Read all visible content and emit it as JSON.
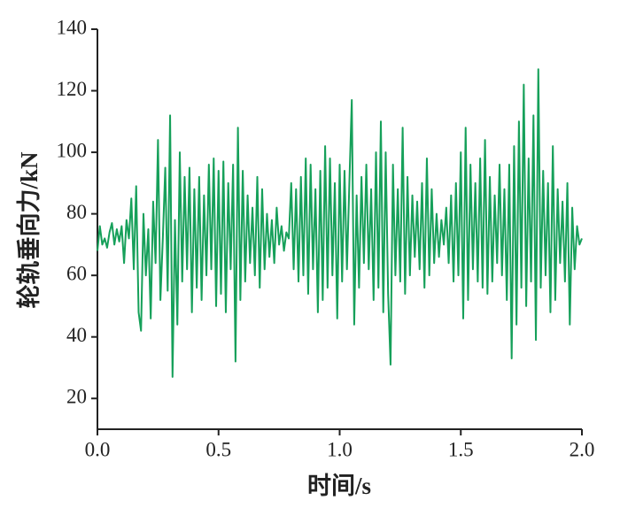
{
  "chart_data": {
    "type": "line",
    "x_label": "时间/s",
    "y_label": "轮轨垂向力/kN",
    "xlim": [
      0,
      2
    ],
    "xticks": [
      {
        "value": 0,
        "label": "0.0"
      },
      0.5,
      {
        "value": 1,
        "label": "1.0"
      },
      1.5,
      {
        "value": 2,
        "label": "2.0"
      }
    ],
    "ylim": [
      10,
      140
    ],
    "yticks": [
      20,
      40,
      60,
      80,
      100,
      120,
      140
    ],
    "x": [
      0,
      0.01,
      0.02,
      0.03,
      0.04,
      0.05,
      0.06,
      0.07,
      0.08,
      0.09,
      0.1,
      0.11,
      0.12,
      0.13,
      0.14,
      0.15,
      0.16,
      0.17,
      0.18,
      0.19,
      0.2,
      0.21,
      0.22,
      0.23,
      0.24,
      0.25,
      0.26,
      0.27,
      0.28,
      0.29,
      0.3,
      0.31,
      0.32,
      0.33,
      0.34,
      0.35,
      0.36,
      0.37,
      0.38,
      0.39,
      0.4,
      0.41,
      0.42,
      0.43,
      0.44,
      0.45,
      0.46,
      0.47,
      0.48,
      0.49,
      0.5,
      0.51,
      0.52,
      0.53,
      0.54,
      0.55,
      0.56,
      0.57,
      0.58,
      0.59,
      0.6,
      0.61,
      0.62,
      0.63,
      0.64,
      0.65,
      0.66,
      0.67,
      0.68,
      0.69,
      0.7,
      0.71,
      0.72,
      0.73,
      0.74,
      0.75,
      0.76,
      0.77,
      0.78,
      0.79,
      0.8,
      0.81,
      0.82,
      0.83,
      0.84,
      0.85,
      0.86,
      0.87,
      0.88,
      0.89,
      0.9,
      0.91,
      0.92,
      0.93,
      0.94,
      0.95,
      0.96,
      0.97,
      0.98,
      0.99,
      1,
      1.01,
      1.02,
      1.03,
      1.04,
      1.05,
      1.06,
      1.07,
      1.08,
      1.09,
      1.1,
      1.11,
      1.12,
      1.13,
      1.14,
      1.15,
      1.16,
      1.17,
      1.18,
      1.19,
      1.2,
      1.21,
      1.22,
      1.23,
      1.24,
      1.25,
      1.26,
      1.27,
      1.28,
      1.29,
      1.3,
      1.31,
      1.32,
      1.33,
      1.34,
      1.35,
      1.36,
      1.37,
      1.38,
      1.39,
      1.4,
      1.41,
      1.42,
      1.43,
      1.44,
      1.45,
      1.46,
      1.47,
      1.48,
      1.49,
      1.5,
      1.51,
      1.52,
      1.53,
      1.54,
      1.55,
      1.56,
      1.57,
      1.58,
      1.59,
      1.6,
      1.61,
      1.62,
      1.63,
      1.64,
      1.65,
      1.66,
      1.67,
      1.68,
      1.69,
      1.7,
      1.71,
      1.72,
      1.73,
      1.74,
      1.75,
      1.76,
      1.77,
      1.78,
      1.79,
      1.8,
      1.81,
      1.82,
      1.83,
      1.84,
      1.85,
      1.86,
      1.87,
      1.88,
      1.89,
      1.9,
      1.91,
      1.92,
      1.93,
      1.94,
      1.95,
      1.96,
      1.97,
      1.98,
      1.99,
      2
    ],
    "series": [
      {
        "color": "#16a05a",
        "values": [
          68,
          76,
          70,
          72,
          69,
          74,
          77,
          70,
          75,
          71,
          76,
          64,
          78,
          72,
          85,
          62,
          89,
          48,
          42,
          80,
          60,
          75,
          46,
          84,
          64,
          104,
          52,
          72,
          95,
          55,
          112,
          27,
          78,
          44,
          100,
          58,
          92,
          62,
          95,
          48,
          88,
          56,
          92,
          52,
          86,
          60,
          96,
          62,
          98,
          50,
          94,
          54,
          97,
          48,
          90,
          62,
          96,
          32,
          108,
          52,
          94,
          58,
          86,
          64,
          82,
          60,
          92,
          56,
          88,
          62,
          80,
          66,
          78,
          64,
          82,
          70,
          76,
          68,
          74,
          72,
          90,
          62,
          88,
          58,
          92,
          60,
          98,
          54,
          96,
          62,
          88,
          48,
          94,
          52,
          102,
          56,
          98,
          60,
          90,
          46,
          96,
          58,
          94,
          62,
          90,
          117,
          44,
          86,
          56,
          92,
          64,
          96,
          62,
          88,
          52,
          100,
          56,
          110,
          48,
          100,
          54,
          31,
          96,
          60,
          88,
          58,
          108,
          54,
          92,
          60,
          86,
          66,
          84,
          62,
          90,
          56,
          98,
          60,
          88,
          64,
          80,
          66,
          78,
          70,
          82,
          64,
          86,
          58,
          90,
          60,
          100,
          46,
          108,
          52,
          96,
          62,
          90,
          58,
          98,
          56,
          104,
          54,
          92,
          58,
          86,
          64,
          96,
          60,
          88,
          52,
          96,
          33,
          102,
          44,
          110,
          56,
          122,
          50,
          98,
          58,
          112,
          39,
          127,
          56,
          94,
          60,
          90,
          48,
          102,
          52,
          88,
          64,
          84,
          58,
          90,
          44,
          82,
          62,
          76,
          70,
          72
        ]
      }
    ]
  }
}
